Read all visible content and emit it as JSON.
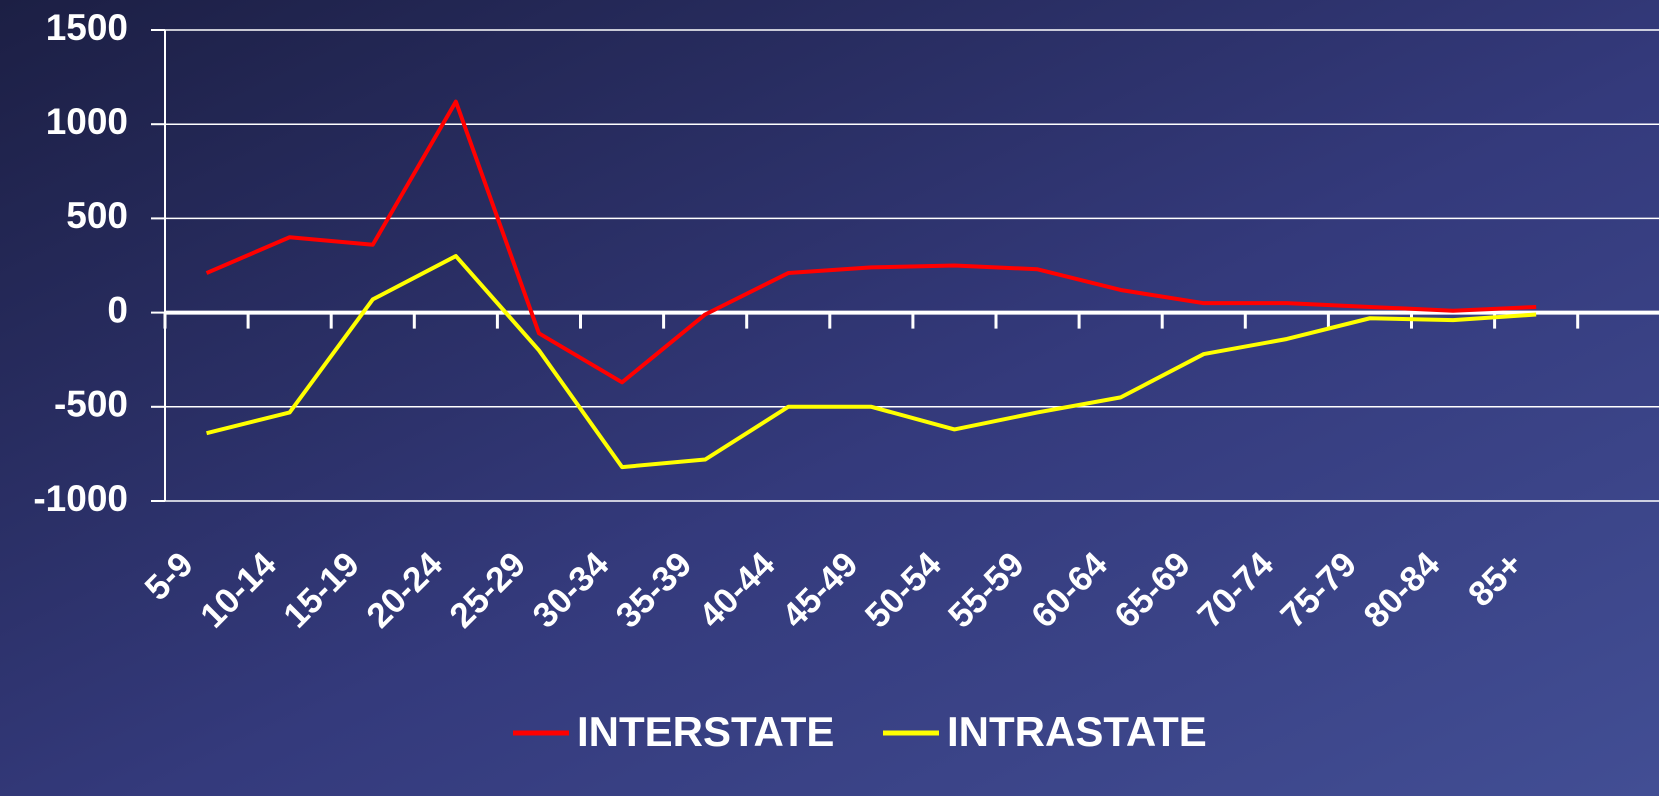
{
  "chart_data": {
    "type": "line",
    "categories": [
      "5-9",
      "10-14",
      "15-19",
      "20-24",
      "25-29",
      "30-34",
      "35-39",
      "40-44",
      "45-49",
      "50-54",
      "55-59",
      "60-64",
      "65-69",
      "70-74",
      "75-79",
      "80-84",
      "85+"
    ],
    "series": [
      {
        "name": "INTERSTATE",
        "color": "#ff0000",
        "values": [
          210,
          400,
          360,
          1120,
          -110,
          -370,
          -10,
          210,
          240,
          250,
          230,
          120,
          50,
          50,
          30,
          10,
          30
        ]
      },
      {
        "name": "INTRASTATE",
        "color": "#ffff00",
        "values": [
          -640,
          -530,
          70,
          300,
          -200,
          -820,
          -780,
          -500,
          -500,
          -620,
          -530,
          -450,
          -220,
          -140,
          -30,
          -40,
          -10
        ]
      }
    ],
    "ylim": [
      -1000,
      1500
    ],
    "yticks": [
      -1000,
      -500,
      0,
      500,
      1000,
      1500
    ],
    "grid": true,
    "legend": "bottom"
  }
}
